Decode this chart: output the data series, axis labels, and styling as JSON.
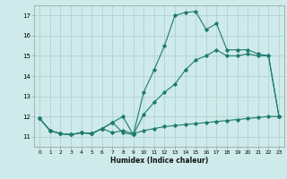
{
  "xlabel": "Humidex (Indice chaleur)",
  "ylabel": "",
  "bg_color": "#ceeaea",
  "grid_color": "#aacece",
  "line_color": "#1e7a6e",
  "xlim": [
    -0.5,
    23.5
  ],
  "ylim": [
    10.5,
    17.5
  ],
  "yticks": [
    11,
    12,
    13,
    14,
    15,
    16,
    17
  ],
  "xticks": [
    0,
    1,
    2,
    3,
    4,
    5,
    6,
    7,
    8,
    9,
    10,
    11,
    12,
    13,
    14,
    15,
    16,
    17,
    18,
    19,
    20,
    21,
    22,
    23
  ],
  "line1_x": [
    0,
    1,
    2,
    3,
    4,
    5,
    6,
    7,
    8,
    9,
    10,
    11,
    12,
    13,
    14,
    15,
    16,
    17,
    18,
    19,
    20,
    21,
    22,
    23
  ],
  "line1_y": [
    11.9,
    11.3,
    11.15,
    11.1,
    11.2,
    11.15,
    11.4,
    11.2,
    11.3,
    11.15,
    11.3,
    11.4,
    11.5,
    11.55,
    11.6,
    11.65,
    11.7,
    11.75,
    11.8,
    11.85,
    11.9,
    11.95,
    12.0,
    12.0
  ],
  "line2_x": [
    0,
    1,
    2,
    3,
    4,
    5,
    6,
    7,
    8,
    9,
    10,
    11,
    12,
    13,
    14,
    15,
    16,
    17,
    18,
    19,
    20,
    21,
    22,
    23
  ],
  "line2_y": [
    11.9,
    11.3,
    11.15,
    11.1,
    11.2,
    11.15,
    11.4,
    11.7,
    11.2,
    11.1,
    12.1,
    12.7,
    13.2,
    13.6,
    14.3,
    14.8,
    15.0,
    15.3,
    15.0,
    15.0,
    15.1,
    15.0,
    15.0,
    12.0
  ],
  "line3_x": [
    0,
    1,
    2,
    3,
    4,
    5,
    6,
    7,
    8,
    9,
    10,
    11,
    12,
    13,
    14,
    15,
    16,
    17,
    18,
    19,
    20,
    21,
    22,
    23
  ],
  "line3_y": [
    11.9,
    11.3,
    11.15,
    11.1,
    11.2,
    11.15,
    11.4,
    11.7,
    12.0,
    11.1,
    13.2,
    14.3,
    15.5,
    17.0,
    17.15,
    17.2,
    16.3,
    16.6,
    15.3,
    15.3,
    15.3,
    15.1,
    15.0,
    12.0
  ]
}
